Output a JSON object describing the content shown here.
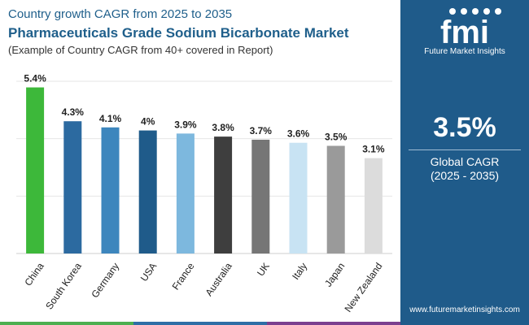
{
  "header": {
    "subtitle": "Country growth CAGR from 2025 to 2035",
    "title": "Pharmaceuticals Grade Sodium Bicarbonate Market",
    "note": "(Example of Country CAGR from 40+ covered in Report)"
  },
  "side_panel": {
    "logo_text": "Future Market Insights",
    "logo_letters": "fmi",
    "global_value": "3.5%",
    "global_label": "Global CAGR",
    "global_range": "(2025 - 2035)",
    "website": "www.futuremarketinsights.com",
    "bg_color": "#1f5b8a"
  },
  "bottom_strip_colors": [
    "#4caf50",
    "#2e6ea6",
    "#7b3f8f"
  ],
  "chart_data": {
    "type": "bar",
    "categories": [
      "China",
      "South Korea",
      "Germany",
      "USA",
      "France",
      "Australia",
      "UK",
      "Italy",
      "Japan",
      "New Zealand"
    ],
    "values": [
      5.4,
      4.3,
      4.1,
      4.0,
      3.9,
      3.8,
      3.7,
      3.6,
      3.5,
      3.1
    ],
    "value_labels": [
      "5.4%",
      "4.3%",
      "4.1%",
      "4%",
      "3.9%",
      "3.8%",
      "3.7%",
      "3.6%",
      "3.5%",
      "3.1%"
    ],
    "colors": [
      "#3db83a",
      "#2c6aa0",
      "#3d86bd",
      "#1f5b8a",
      "#7db8de",
      "#3e3e3e",
      "#767676",
      "#c8e3f3",
      "#9a9a9a",
      "#dcdcdc"
    ],
    "ylim": [
      0,
      5.6
    ],
    "grid": true,
    "legend": "none",
    "xlabel": "",
    "ylabel": ""
  }
}
